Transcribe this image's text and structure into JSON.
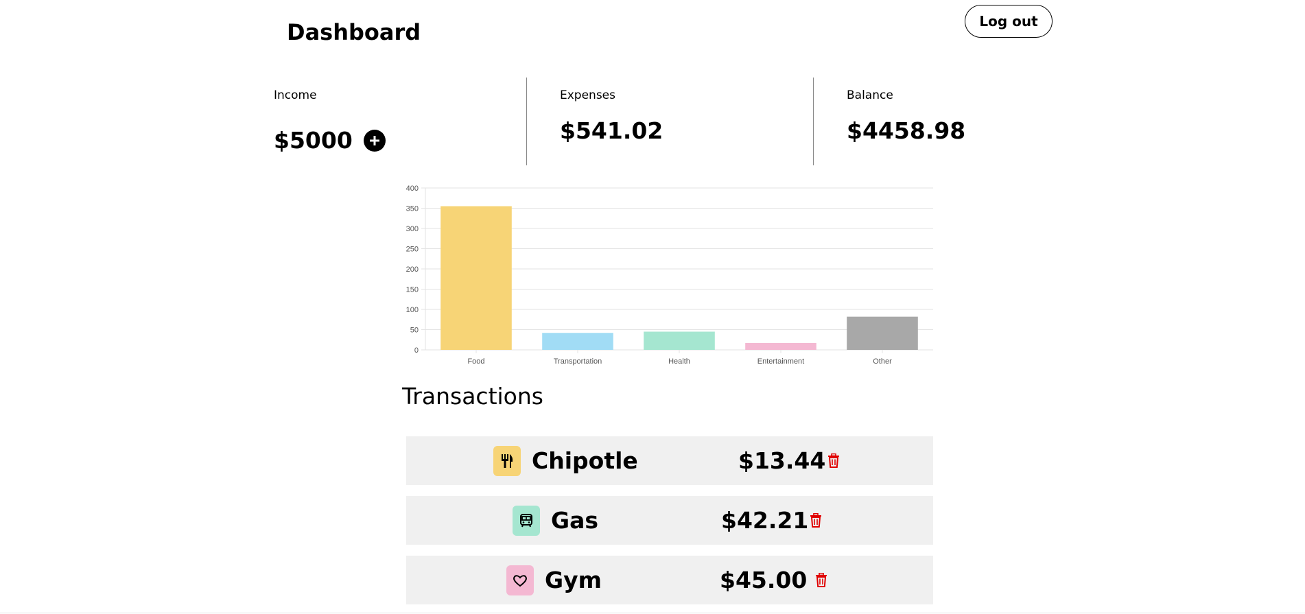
{
  "header": {
    "title": "Dashboard",
    "logout_label": "Log out"
  },
  "stats": {
    "income": {
      "label": "Income",
      "value": "$5000",
      "add_icon": "plus-icon"
    },
    "expenses": {
      "label": "Expenses",
      "value": "$541.02"
    },
    "balance": {
      "label": "Balance",
      "value": "$4458.98"
    }
  },
  "chart_data": {
    "type": "bar",
    "categories": [
      "Food",
      "Transportation",
      "Health",
      "Entertainment",
      "Other"
    ],
    "values": [
      355,
      42,
      45,
      17,
      82
    ],
    "colors": [
      "#f7d476",
      "#a1dcf5",
      "#a5e6d0",
      "#f4b8d2",
      "#a8a8a8"
    ],
    "ylim": [
      0,
      400
    ],
    "yticks": [
      0,
      50,
      100,
      150,
      200,
      250,
      300,
      350,
      400
    ],
    "grid": true
  },
  "transactions": {
    "title": "Transactions",
    "items": [
      {
        "name": "Chipotle",
        "amount": "$13.44",
        "icon": "fork-knife-icon",
        "color": "#f7d476"
      },
      {
        "name": "Gas",
        "amount": "$42.21",
        "icon": "bus-icon",
        "color": "#a5e6d0"
      },
      {
        "name": "Gym",
        "amount": "$45.00",
        "icon": "heart-icon",
        "color": "#f4b8d2"
      }
    ],
    "delete_color": "#e00000"
  }
}
